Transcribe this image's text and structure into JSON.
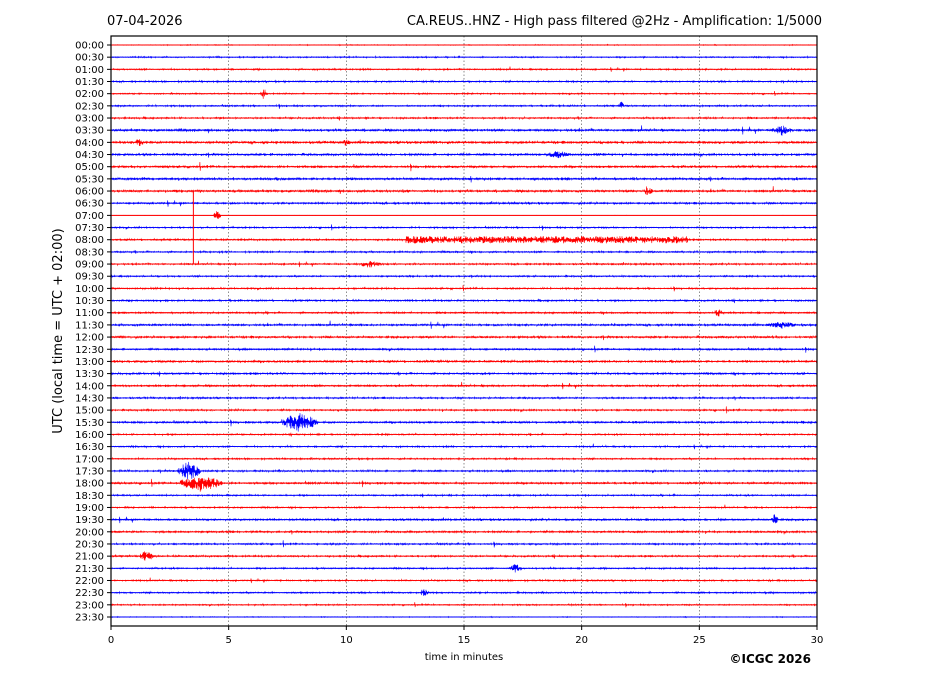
{
  "chart_data": {
    "type": "line",
    "title_left": "07-04-2026",
    "title_right": "CA.REUS..HNZ - High pass filtered @2Hz - Amplification: 1/5000",
    "xlabel": "time in minutes",
    "ylabel": "UTC (local time = UTC + 02:00)",
    "xlim": [
      0,
      30
    ],
    "xticks": [
      "0",
      "5",
      "10",
      "15",
      "20",
      "25",
      "30"
    ],
    "grid": "vertical dotted",
    "copyright": "©ICGC 2026",
    "colors": {
      "even_rows": "#ff0000",
      "odd_rows": "#0000ff"
    },
    "rows": [
      "00:00",
      "00:30",
      "01:00",
      "01:30",
      "02:00",
      "02:30",
      "03:00",
      "03:30",
      "04:00",
      "04:30",
      "05:00",
      "05:30",
      "06:00",
      "06:30",
      "07:00",
      "07:30",
      "08:00",
      "08:30",
      "09:00",
      "09:30",
      "10:00",
      "10:30",
      "11:00",
      "11:30",
      "12:00",
      "12:30",
      "13:00",
      "13:30",
      "14:00",
      "14:30",
      "15:00",
      "15:30",
      "16:00",
      "16:30",
      "17:00",
      "17:30",
      "18:00",
      "18:30",
      "19:00",
      "19:30",
      "20:00",
      "20:30",
      "21:00",
      "21:30",
      "22:00",
      "22:30",
      "23:00",
      "23:30"
    ],
    "noise_level": [
      0.3,
      0.5,
      0.6,
      0.6,
      0.5,
      0.6,
      0.7,
      1.0,
      1.0,
      0.9,
      0.9,
      1.0,
      1.0,
      0.8,
      0.1,
      0.6,
      0.7,
      0.7,
      0.7,
      0.6,
      0.6,
      0.7,
      0.7,
      0.9,
      0.9,
      0.7,
      0.9,
      0.8,
      0.8,
      0.7,
      0.7,
      0.8,
      0.6,
      0.6,
      0.6,
      0.7,
      0.8,
      0.6,
      0.6,
      0.8,
      0.8,
      0.7,
      0.7,
      0.6,
      0.6,
      0.6,
      0.5,
      0.3
    ],
    "events": [
      {
        "row": 4,
        "minute": 6.5,
        "amplitude": 7,
        "duration": 0.3
      },
      {
        "row": 5,
        "minute": 21.7,
        "amplitude": 6,
        "duration": 0.2
      },
      {
        "row": 7,
        "minute": 28.5,
        "amplitude": 6,
        "duration": 0.8
      },
      {
        "row": 8,
        "minute": 1.2,
        "amplitude": 6,
        "duration": 0.3
      },
      {
        "row": 8,
        "minute": 10.0,
        "amplitude": 5,
        "duration": 0.3
      },
      {
        "row": 9,
        "minute": 19.0,
        "amplitude": 4,
        "duration": 1.0
      },
      {
        "row": 12,
        "minute": 22.8,
        "amplitude": 6,
        "duration": 0.4
      },
      {
        "row": 14,
        "minute": 4.5,
        "amplitude": 6,
        "duration": 0.3
      },
      {
        "row": 16,
        "minute": 18.5,
        "amplitude": 4,
        "duration": 12.0
      },
      {
        "row": 18,
        "minute": 11.0,
        "amplitude": 4,
        "duration": 1.0
      },
      {
        "row": 22,
        "minute": 25.8,
        "amplitude": 6,
        "duration": 0.3
      },
      {
        "row": 23,
        "minute": 28.5,
        "amplitude": 4,
        "duration": 1.2
      },
      {
        "row": 31,
        "minute": 8.0,
        "amplitude": 10,
        "duration": 1.6
      },
      {
        "row": 35,
        "minute": 3.3,
        "amplitude": 10,
        "duration": 1.0
      },
      {
        "row": 36,
        "minute": 3.8,
        "amplitude": 9,
        "duration": 1.8
      },
      {
        "row": 39,
        "minute": 28.2,
        "amplitude": 7,
        "duration": 0.3
      },
      {
        "row": 42,
        "minute": 1.5,
        "amplitude": 6,
        "duration": 0.6
      },
      {
        "row": 43,
        "minute": 17.2,
        "amplitude": 5,
        "duration": 0.5
      },
      {
        "row": 45,
        "minute": 13.3,
        "amplitude": 6,
        "duration": 0.3
      }
    ],
    "long_spike": {
      "minute": 3.5,
      "from_row": 12,
      "to_row": 18
    }
  }
}
